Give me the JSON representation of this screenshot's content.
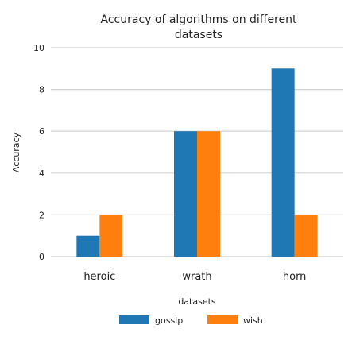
{
  "chart_data": {
    "type": "bar",
    "title_line1": "Accuracy of algorithms on different",
    "title_line2": "datasets",
    "xlabel": "datasets",
    "ylabel": "Accuracy",
    "ylim": [
      0,
      10
    ],
    "yticks": [
      "0",
      "2",
      "4",
      "6",
      "8",
      "10"
    ],
    "grid": true,
    "legend_position": "bottom",
    "categories": [
      "heroic",
      "wrath",
      "horn"
    ],
    "series": [
      {
        "name": "gossip",
        "color": "#1f77b4",
        "values": [
          1,
          6,
          9
        ]
      },
      {
        "name": "wish",
        "color": "#ff7f0e",
        "values": [
          2,
          6,
          2
        ]
      }
    ]
  }
}
